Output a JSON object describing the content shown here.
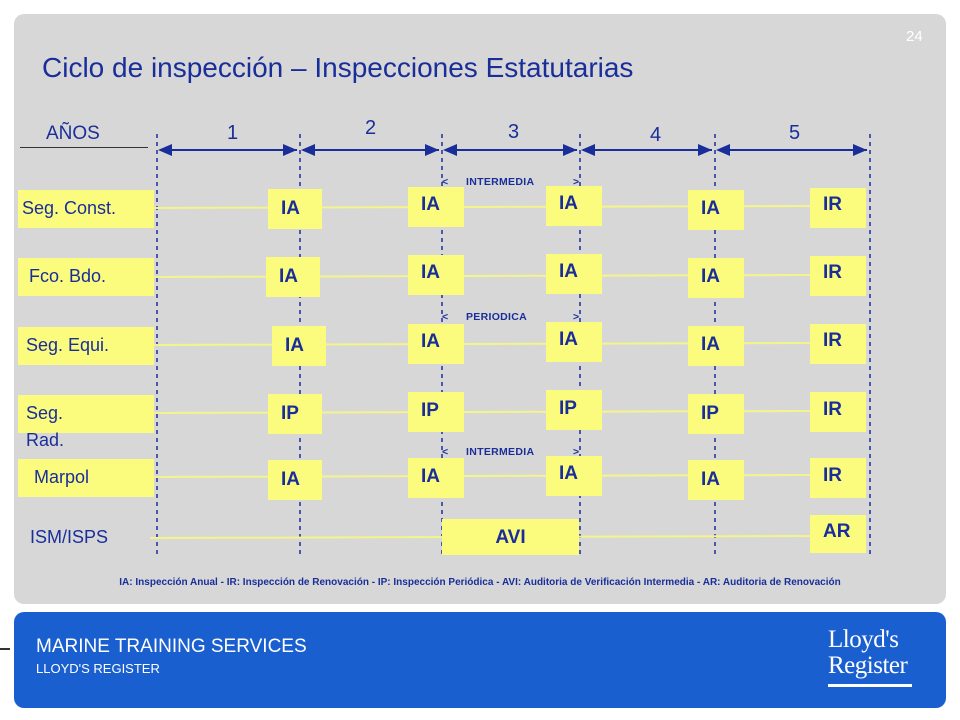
{
  "page_number": "24",
  "title": "Ciclo de inspección – Inspecciones Estatutarias",
  "years_label": "AÑOS",
  "years": [
    "1",
    "2",
    "3",
    "4",
    "5"
  ],
  "rows": [
    {
      "label": "Seg. Const.",
      "boxes": [
        "IA",
        "IA",
        "IA",
        "IA",
        "IR"
      ]
    },
    {
      "label": "Fco. Bdo.",
      "boxes": [
        "IA",
        "IA",
        "IA",
        "IA",
        "IR"
      ]
    },
    {
      "label": "Seg. Equi.",
      "boxes": [
        "IA",
        "IA",
        "IA",
        "IA",
        "IR"
      ]
    },
    {
      "label_line1": "Seg.",
      "label_line2": "Rad.",
      "boxes": [
        "IP",
        "IP",
        "IP",
        "IP",
        "IR"
      ]
    },
    {
      "label": "Marpol",
      "boxes": [
        "IA",
        "IA",
        "IA",
        "IA",
        "IR"
      ]
    },
    {
      "label": "ISM/ISPS",
      "boxes": [
        "AVI",
        "AR"
      ]
    }
  ],
  "notes": {
    "intermedia_1": "INTERMEDIA",
    "periodica": "PERIODICA",
    "intermedia_2": "INTERMEDIA",
    "left_bracket": "<",
    "right_bracket": ">"
  },
  "legend": "IA: Inspección Anual  -  IR: Inspección de Renovación  -  IP: Inspección Periódica  -  AVI: Auditoria de Verificación Intermedia  -  AR: Auditoria de Renovación",
  "footer": {
    "title": "MARINE TRAINING SERVICES",
    "subtitle": "LLOYD'S REGISTER",
    "logo_line1": "Lloyd's",
    "logo_line2": "Register"
  },
  "colors": {
    "panel": "#d7d7d7",
    "box": "#fbfb7e",
    "text": "#1a2e9a",
    "footer": "#1a5fd0"
  }
}
